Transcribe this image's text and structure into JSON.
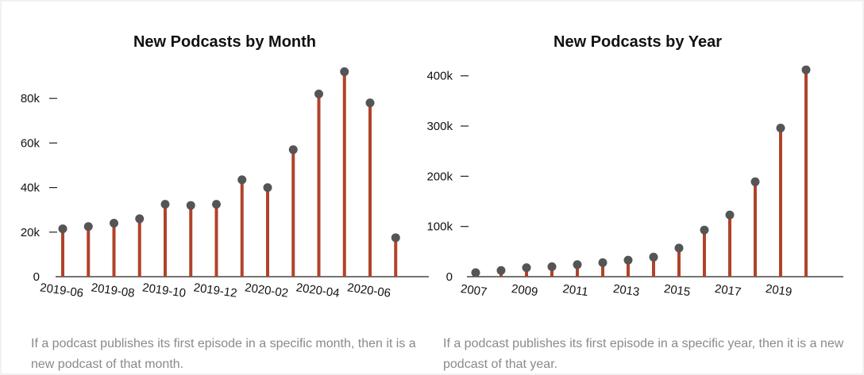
{
  "chart_data": [
    {
      "type": "lollipop",
      "title": "New Podcasts by Month",
      "xlabel": "",
      "ylabel": "",
      "categories": [
        "2019-06",
        "2019-07",
        "2019-08",
        "2019-09",
        "2019-10",
        "2019-11",
        "2019-12",
        "2020-01",
        "2020-02",
        "2020-03",
        "2020-04",
        "2020-05",
        "2020-06",
        "2020-07"
      ],
      "x_tick_labels": [
        "2019-06",
        "2019-08",
        "2019-10",
        "2019-12",
        "2020-02",
        "2020-04",
        "2020-06"
      ],
      "values": [
        21500,
        22500,
        24000,
        26000,
        32500,
        32000,
        32500,
        43500,
        40000,
        57000,
        82000,
        92000,
        78000,
        17500
      ],
      "y_ticks": [
        0,
        20000,
        40000,
        60000,
        80000
      ],
      "y_tick_labels": [
        "0",
        "20k",
        "40k",
        "60k",
        "80k"
      ],
      "ylim": [
        0,
        95000
      ],
      "grid": false
    },
    {
      "type": "lollipop",
      "title": "New Podcasts by Year",
      "xlabel": "",
      "ylabel": "",
      "categories": [
        "2007",
        "2008",
        "2009",
        "2010",
        "2011",
        "2012",
        "2013",
        "2014",
        "2015",
        "2016",
        "2017",
        "2018",
        "2019",
        "2020"
      ],
      "x_tick_labels": [
        "2007",
        "2009",
        "2011",
        "2013",
        "2015",
        "2017",
        "2019"
      ],
      "values": [
        8000,
        12500,
        18000,
        20000,
        24000,
        28000,
        33000,
        39000,
        57000,
        93000,
        123000,
        189000,
        296000,
        412000
      ],
      "y_ticks": [
        0,
        100000,
        200000,
        300000,
        400000
      ],
      "y_tick_labels": [
        "0",
        "100k",
        "200k",
        "300k",
        "400k"
      ],
      "ylim": [
        0,
        420000
      ],
      "grid": false
    }
  ],
  "colors": {
    "stem": "#b0432a",
    "dot": "#555555",
    "axis": "#222222",
    "caption": "#8a8a8a"
  },
  "captions": {
    "month": "If a podcast publishes its first episode in a specific month, then it is a new podcast of that month.",
    "year": "If a podcast publishes its first episode in a specific year, then it is a new podcast of that year."
  }
}
